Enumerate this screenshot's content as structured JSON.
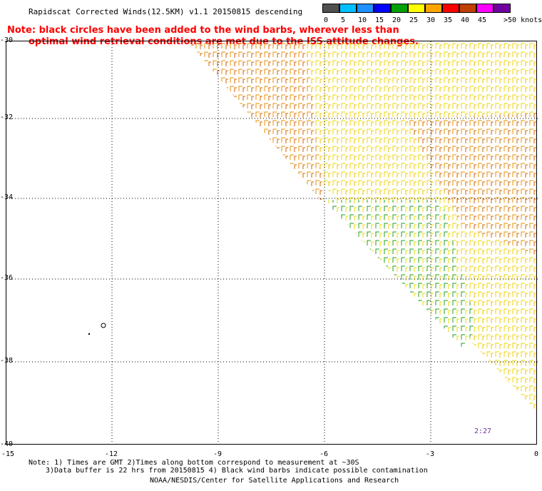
{
  "title": "Rapidscat Corrected Winds(12.5KM) v1.1 20150815 descending",
  "note_line1": "Note: black circles have been added to the wind barbs, wherever less than",
  "note_line2": "optimal wind retrieval conditions are met due to the ISS attitude changes.",
  "legend": {
    "labels": [
      "0",
      "5",
      "10",
      "15",
      "20",
      "25",
      "30",
      "35",
      "40",
      "45",
      ">50 knots"
    ],
    "colors": [
      "#505050",
      "#00bfff",
      "#1e90ff",
      "#0000ff",
      "#00a000",
      "#ffff00",
      "#ffa500",
      "#ff0000",
      "#c04000",
      "#ff00ff",
      "#7000a0"
    ]
  },
  "axes": {
    "y_ticks": [
      "-30",
      "-32",
      "-34",
      "-36",
      "-38",
      "-40"
    ],
    "x_ticks": [
      "-15",
      "-12",
      "-9",
      "-6",
      "-3",
      "0"
    ]
  },
  "time_label": "2:27",
  "footer": {
    "line1": "Note: 1) Times are GMT 2)Times along bottom correspond to measurement at ~30S",
    "line2": "3)Data buffer is 22 hrs from 20150815 4) Black wind barbs indicate possible contamination",
    "line3": "NOAA/NESDIS/Center for Satellite Applications and Research"
  }
}
